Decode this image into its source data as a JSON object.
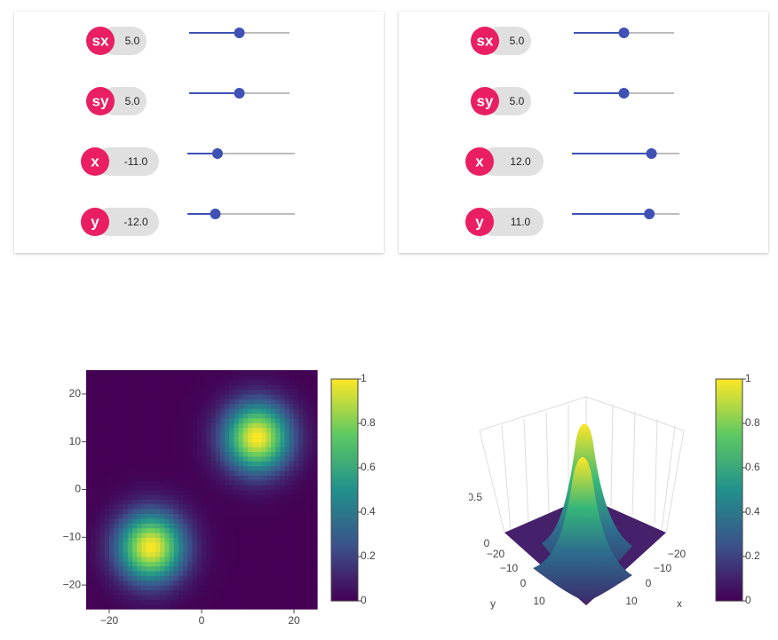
{
  "panels": [
    {
      "controls": [
        {
          "label": "sx",
          "value": {
            "value": 5,
            "label": "5.0"
          },
          "min": 0,
          "max": 10
        },
        {
          "label": "sy",
          "value": {
            "value": 5,
            "label": "5.0"
          },
          "min": 0,
          "max": 10
        },
        {
          "label": "x",
          "value": {
            "value": -11,
            "label": "-11.0"
          },
          "min": -25,
          "max": 25
        },
        {
          "label": "y",
          "value": {
            "value": -12,
            "label": "-12.0"
          },
          "min": -25,
          "max": 25
        }
      ]
    },
    {
      "controls": [
        {
          "label": "sx",
          "value": {
            "value": 5,
            "label": "5.0"
          },
          "min": 0,
          "max": 10
        },
        {
          "label": "sy",
          "value": {
            "value": 5,
            "label": "5.0"
          },
          "min": 0,
          "max": 10
        },
        {
          "label": "x",
          "value": {
            "value": 12,
            "label": "12.0"
          },
          "min": -25,
          "max": 25
        },
        {
          "label": "y",
          "value": {
            "value": 11,
            "label": "11.0"
          },
          "min": -25,
          "max": 25
        }
      ]
    }
  ],
  "heatmap": {
    "type": "heatmap",
    "xlim": [
      -25,
      25
    ],
    "ylim": [
      -25,
      25
    ],
    "xticks": [
      {
        "value": -20,
        "label": "−20"
      },
      0,
      20
    ],
    "yticks": [
      {
        "value": -20,
        "label": "−20"
      },
      {
        "value": -10,
        "label": "−10"
      },
      0,
      10,
      20
    ]
  },
  "colorbar": {
    "lim": [
      0,
      1
    ],
    "ticks": [
      0,
      0.2,
      0.4,
      0.6,
      0.8,
      1
    ]
  },
  "surface": {
    "x_label": "x",
    "y_label": "y",
    "xticks": [
      "−20",
      "−10",
      "0",
      "10"
    ],
    "yticks": [
      "−20",
      "−10",
      "0",
      "10"
    ],
    "zticks": [
      "0",
      "0.5"
    ]
  }
}
